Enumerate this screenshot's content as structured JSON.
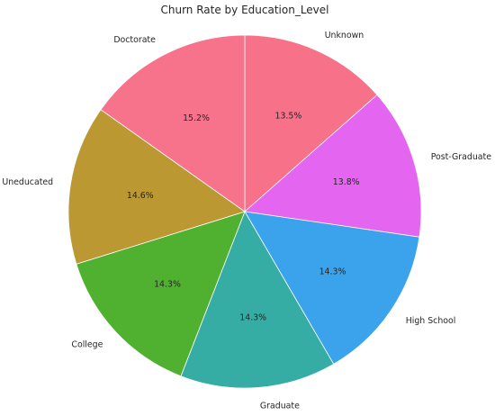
{
  "chart_data": {
    "type": "pie",
    "title": "Churn Rate by Education_Level",
    "slices": [
      {
        "label": "Unknown",
        "value": 13.5,
        "pct_label": "13.5%",
        "color": "#f77189"
      },
      {
        "label": "Post-Graduate",
        "value": 13.8,
        "pct_label": "13.8%",
        "color": "#e466f0"
      },
      {
        "label": "High School",
        "value": 14.3,
        "pct_label": "14.3%",
        "color": "#3ba3ec"
      },
      {
        "label": "Graduate",
        "value": 14.3,
        "pct_label": "14.3%",
        "color": "#36ada4"
      },
      {
        "label": "College",
        "value": 14.3,
        "pct_label": "14.3%",
        "color": "#50b131"
      },
      {
        "label": "Uneducated",
        "value": 14.6,
        "pct_label": "14.6%",
        "color": "#bb9832"
      },
      {
        "label": "Doctorate",
        "value": 15.2,
        "pct_label": "15.2%",
        "color": "#f7738b"
      }
    ],
    "start_angle": "top",
    "direction": "clockwise",
    "edge_color": "#ffffff",
    "legend": "none"
  }
}
